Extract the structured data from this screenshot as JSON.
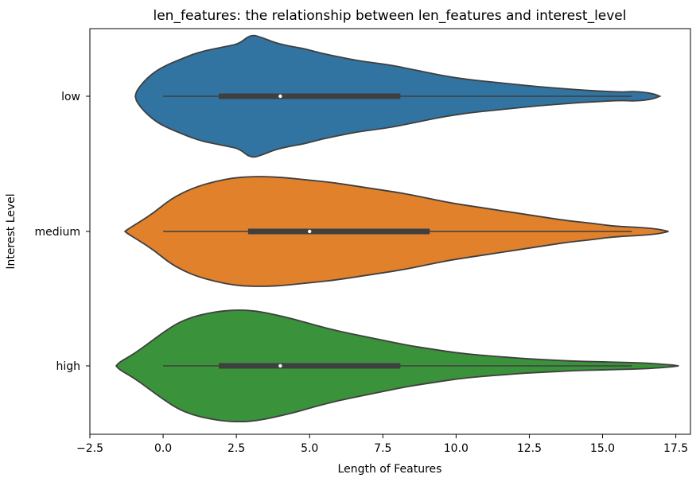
{
  "chart_data": {
    "type": "violin",
    "title": "len_features: the relationship between len_features and interest_level",
    "xlabel": "Length of Features",
    "ylabel": "Interest Level",
    "xlim": [
      -2.5,
      18.0
    ],
    "x_ticks": [
      "−2.5",
      "0.0",
      "2.5",
      "5.0",
      "7.5",
      "10.0",
      "12.5",
      "15.0",
      "17.5"
    ],
    "x_tick_values": [
      -2.5,
      0.0,
      2.5,
      5.0,
      7.5,
      10.0,
      12.5,
      15.0,
      17.5
    ],
    "categories": [
      "low",
      "medium",
      "high"
    ],
    "grid": false,
    "series": [
      {
        "category": "low",
        "color": "#3274a1",
        "whisker": [
          0,
          16
        ],
        "q1": 1.9,
        "median": 4.0,
        "q3": 8.1,
        "density": [
          [
            -0.95,
            0.0
          ],
          [
            -0.9,
            0.05
          ],
          [
            -0.6,
            0.14
          ],
          [
            -0.2,
            0.22
          ],
          [
            0.2,
            0.27
          ],
          [
            0.6,
            0.31
          ],
          [
            1.0,
            0.35
          ],
          [
            1.4,
            0.38
          ],
          [
            1.8,
            0.4
          ],
          [
            2.2,
            0.42
          ],
          [
            2.6,
            0.44
          ],
          [
            3.0,
            0.52
          ],
          [
            3.4,
            0.49
          ],
          [
            3.8,
            0.45
          ],
          [
            4.3,
            0.42
          ],
          [
            4.8,
            0.4
          ],
          [
            5.4,
            0.36
          ],
          [
            6.0,
            0.33
          ],
          [
            6.6,
            0.3
          ],
          [
            7.2,
            0.28
          ],
          [
            7.8,
            0.26
          ],
          [
            8.4,
            0.23
          ],
          [
            9.0,
            0.2
          ],
          [
            9.6,
            0.17
          ],
          [
            10.4,
            0.14
          ],
          [
            11.2,
            0.12
          ],
          [
            12.0,
            0.1
          ],
          [
            12.8,
            0.08
          ],
          [
            13.6,
            0.065
          ],
          [
            14.4,
            0.05
          ],
          [
            15.2,
            0.04
          ],
          [
            15.7,
            0.035
          ],
          [
            16.0,
            0.04
          ],
          [
            16.4,
            0.035
          ],
          [
            16.75,
            0.02
          ],
          [
            16.95,
            0.0
          ]
        ]
      },
      {
        "category": "medium",
        "color": "#e1812c",
        "whisker": [
          0,
          16
        ],
        "q1": 2.9,
        "median": 5.0,
        "q3": 9.1,
        "density": [
          [
            -1.3,
            0.0
          ],
          [
            -1.2,
            0.02
          ],
          [
            -0.8,
            0.08
          ],
          [
            -0.3,
            0.16
          ],
          [
            0.2,
            0.26
          ],
          [
            0.7,
            0.33
          ],
          [
            1.2,
            0.38
          ],
          [
            1.8,
            0.42
          ],
          [
            2.4,
            0.45
          ],
          [
            3.0,
            0.46
          ],
          [
            3.6,
            0.46
          ],
          [
            4.2,
            0.45
          ],
          [
            5.0,
            0.43
          ],
          [
            5.8,
            0.41
          ],
          [
            6.6,
            0.38
          ],
          [
            7.4,
            0.35
          ],
          [
            8.2,
            0.32
          ],
          [
            9.0,
            0.28
          ],
          [
            9.8,
            0.24
          ],
          [
            10.6,
            0.21
          ],
          [
            11.4,
            0.18
          ],
          [
            12.2,
            0.15
          ],
          [
            13.0,
            0.12
          ],
          [
            13.8,
            0.09
          ],
          [
            14.6,
            0.07
          ],
          [
            15.2,
            0.05
          ],
          [
            15.7,
            0.04
          ],
          [
            16.2,
            0.035
          ],
          [
            16.7,
            0.025
          ],
          [
            17.0,
            0.015
          ],
          [
            17.25,
            0.0
          ]
        ]
      },
      {
        "category": "high",
        "color": "#3a923a",
        "whisker": [
          0,
          16
        ],
        "q1": 1.9,
        "median": 4.0,
        "q3": 8.1,
        "density": [
          [
            -1.6,
            0.0
          ],
          [
            -1.5,
            0.03
          ],
          [
            -1.0,
            0.1
          ],
          [
            -0.5,
            0.19
          ],
          [
            0.0,
            0.28
          ],
          [
            0.5,
            0.36
          ],
          [
            1.0,
            0.41
          ],
          [
            1.5,
            0.44
          ],
          [
            2.0,
            0.46
          ],
          [
            2.6,
            0.47
          ],
          [
            3.2,
            0.46
          ],
          [
            3.8,
            0.43
          ],
          [
            4.5,
            0.39
          ],
          [
            5.2,
            0.34
          ],
          [
            6.0,
            0.29
          ],
          [
            6.8,
            0.25
          ],
          [
            7.6,
            0.21
          ],
          [
            8.4,
            0.17
          ],
          [
            9.2,
            0.14
          ],
          [
            10.0,
            0.11
          ],
          [
            10.8,
            0.09
          ],
          [
            11.6,
            0.075
          ],
          [
            12.4,
            0.06
          ],
          [
            13.2,
            0.05
          ],
          [
            14.0,
            0.04
          ],
          [
            14.8,
            0.035
          ],
          [
            15.6,
            0.03
          ],
          [
            16.4,
            0.025
          ],
          [
            17.0,
            0.015
          ],
          [
            17.4,
            0.007
          ],
          [
            17.6,
            0.0
          ]
        ]
      }
    ]
  }
}
